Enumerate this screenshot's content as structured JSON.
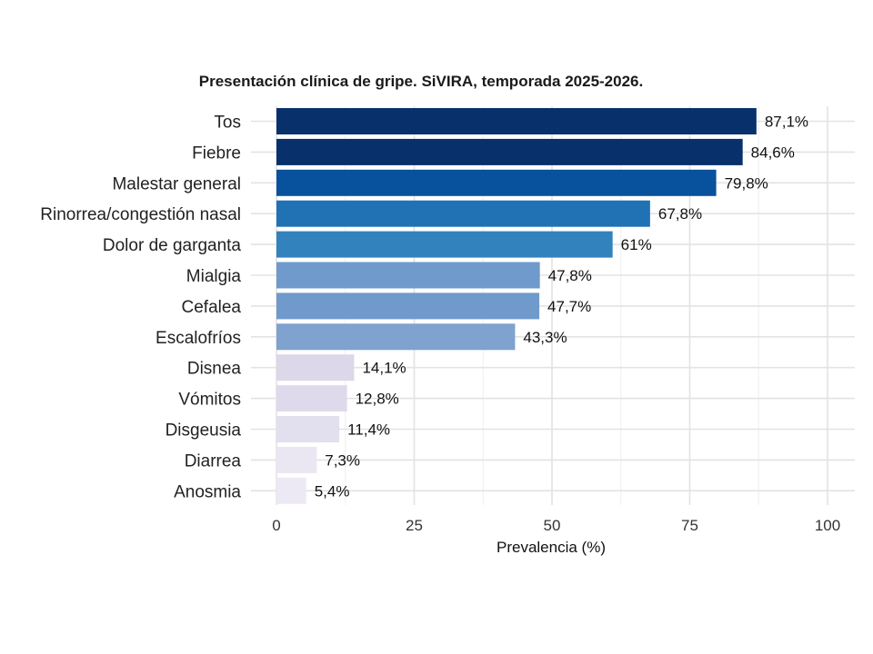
{
  "chart_data": {
    "type": "bar",
    "orientation": "horizontal",
    "title": "Presentación clínica de gripe. SiVIRA, temporada 2025-2026.",
    "xlabel": "Prevalencia (%)",
    "ylabel": "",
    "xlim": [
      0,
      100
    ],
    "x_ticks": [
      "0",
      "25",
      "50",
      "75",
      "100"
    ],
    "grid": true,
    "legend": "none",
    "categories": [
      "Tos",
      "Fiebre",
      "Malestar general",
      "Rinorrea/congestión nasal",
      "Dolor de garganta",
      "Mialgia",
      "Cefalea",
      "Escalofríos",
      "Disnea",
      "Vómitos",
      "Disgeusia",
      "Diarrea",
      "Anosmia"
    ],
    "values": [
      87.1,
      84.6,
      79.8,
      67.8,
      61,
      47.8,
      47.7,
      43.3,
      14.1,
      12.8,
      11.4,
      7.3,
      5.4
    ],
    "value_labels": [
      "87,1%",
      "84,6%",
      "79,8%",
      "67,8%",
      "61%",
      "47,8%",
      "47,7%",
      "43,3%",
      "14,1%",
      "12,8%",
      "11,4%",
      "7,3%",
      "5,4%"
    ],
    "colors": [
      "#08306b",
      "#08306b",
      "#08519c",
      "#2171b5",
      "#3182bd",
      "#6f9acb",
      "#6f9acb",
      "#7fa2cf",
      "#dcd8ea",
      "#dedaeb",
      "#e2e0ee",
      "#eae6f2",
      "#ede9f4"
    ]
  }
}
